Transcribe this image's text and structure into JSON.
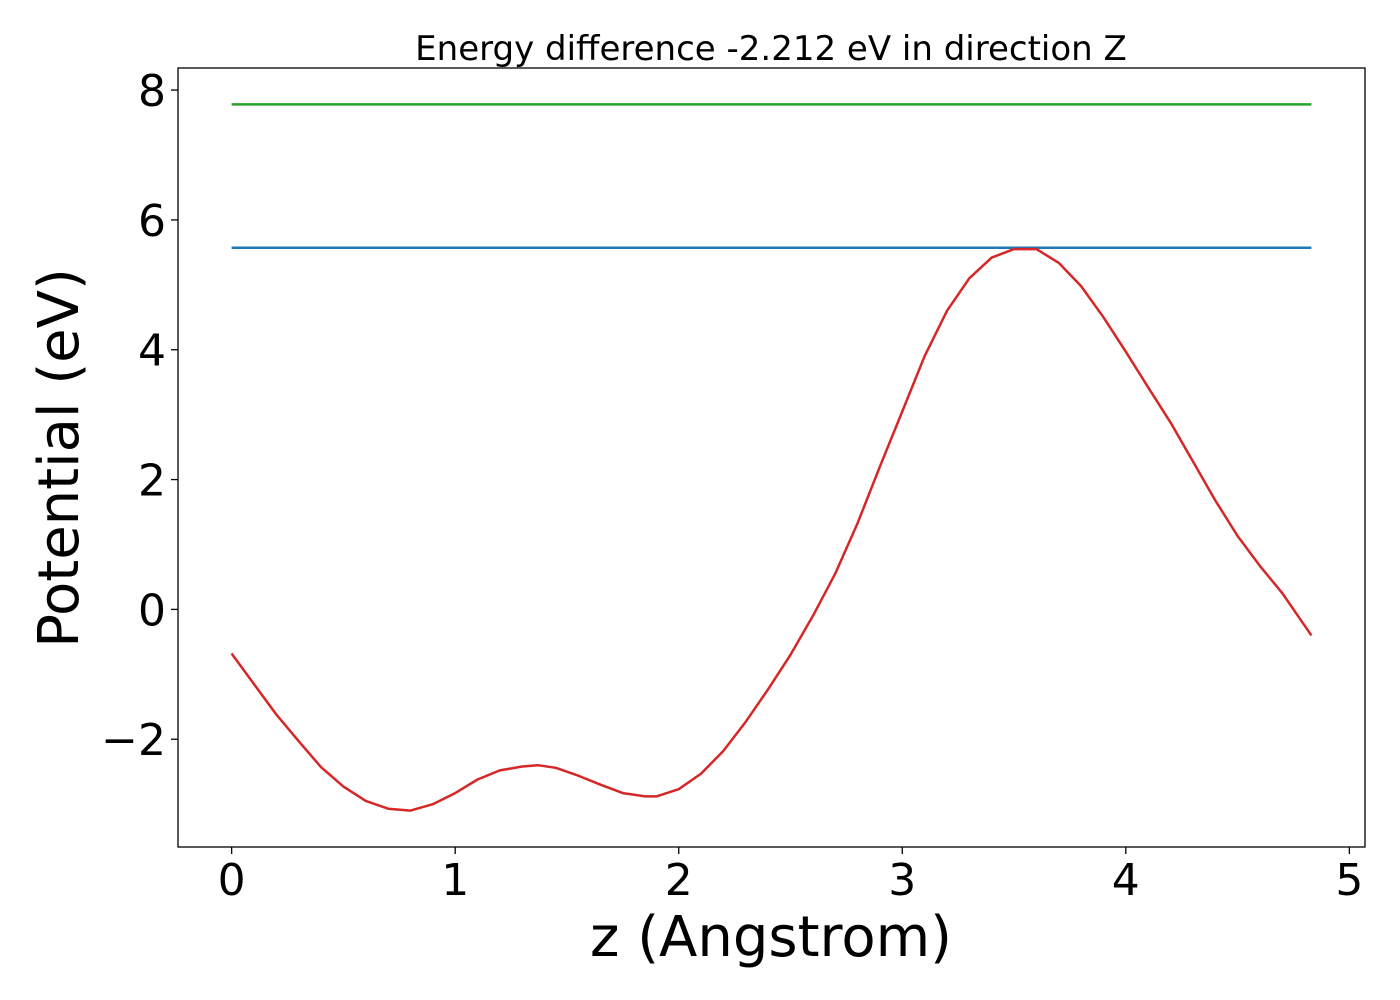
{
  "chart_data": {
    "type": "line",
    "title": "Energy difference -2.212 eV in direction Z",
    "xlabel": "z (Angstrom)",
    "ylabel": "Potential (eV)",
    "xlim": [
      -0.24,
      5.07
    ],
    "ylim": [
      -3.66,
      8.34
    ],
    "xticks": [
      0,
      1,
      2,
      3,
      4,
      5
    ],
    "xtick_labels": [
      "0",
      "1",
      "2",
      "3",
      "4",
      "5"
    ],
    "yticks": [
      -2,
      0,
      2,
      4,
      6,
      8
    ],
    "ytick_labels": [
      "−2",
      "0",
      "2",
      "4",
      "6",
      "8"
    ],
    "grid": false,
    "series": [
      {
        "color": "#2ca02c",
        "x": [
          0,
          4.83
        ],
        "y": [
          7.78,
          7.78
        ]
      },
      {
        "color": "#1f77b4",
        "x": [
          0,
          4.83
        ],
        "y": [
          5.57,
          5.57
        ]
      },
      {
        "color": "#d62728",
        "x": [
          0.0,
          0.1,
          0.2,
          0.3,
          0.4,
          0.5,
          0.6,
          0.7,
          0.8,
          0.9,
          1.0,
          1.1,
          1.2,
          1.3,
          1.37,
          1.45,
          1.55,
          1.65,
          1.75,
          1.85,
          1.9,
          2.0,
          2.1,
          2.2,
          2.3,
          2.4,
          2.5,
          2.6,
          2.7,
          2.8,
          2.9,
          3.0,
          3.1,
          3.2,
          3.3,
          3.4,
          3.5,
          3.6,
          3.7,
          3.8,
          3.9,
          4.0,
          4.1,
          4.2,
          4.3,
          4.4,
          4.5,
          4.6,
          4.7,
          4.83
        ],
        "y": [
          -0.68,
          -1.15,
          -1.62,
          -2.03,
          -2.43,
          -2.73,
          -2.95,
          -3.07,
          -3.1,
          -3.0,
          -2.83,
          -2.62,
          -2.48,
          -2.42,
          -2.4,
          -2.44,
          -2.56,
          -2.7,
          -2.83,
          -2.88,
          -2.88,
          -2.77,
          -2.53,
          -2.18,
          -1.73,
          -1.23,
          -0.7,
          -0.1,
          0.55,
          1.33,
          2.2,
          3.05,
          3.9,
          4.6,
          5.1,
          5.42,
          5.55,
          5.55,
          5.34,
          4.98,
          4.5,
          3.97,
          3.42,
          2.88,
          2.28,
          1.68,
          1.13,
          0.67,
          0.25,
          -0.4
        ]
      }
    ]
  }
}
